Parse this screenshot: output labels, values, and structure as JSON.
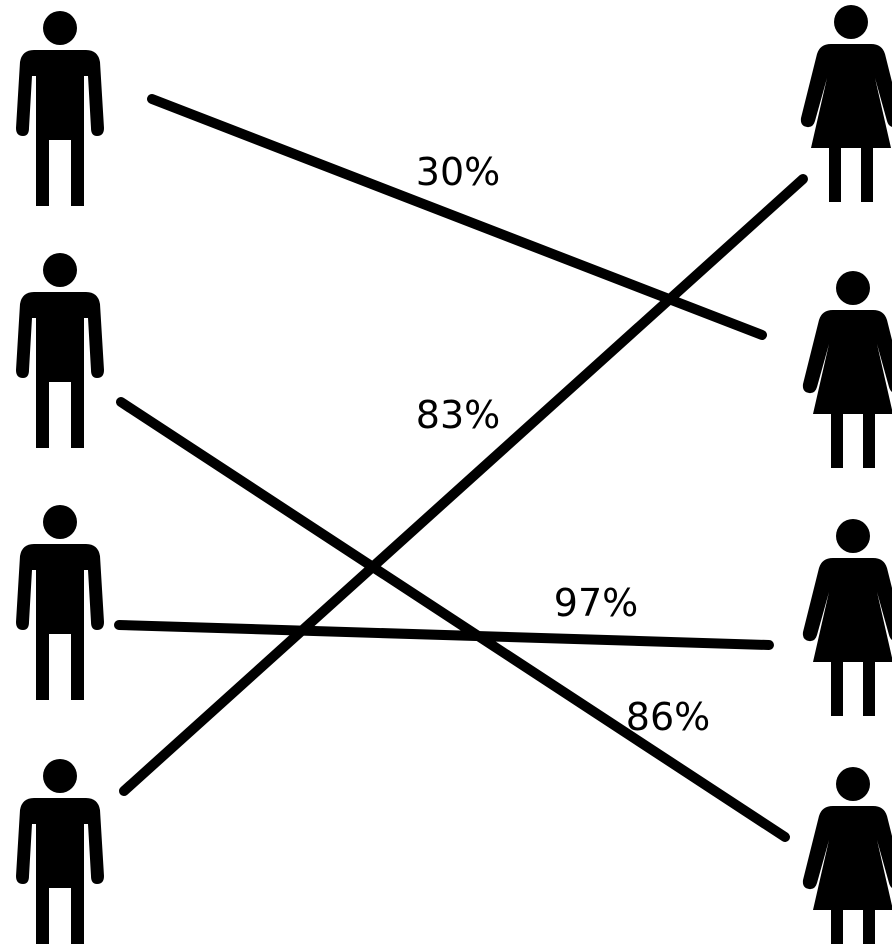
{
  "colors": {
    "ink": "#000000",
    "background": "#ffffff"
  },
  "figures": {
    "left_icon": "man-icon",
    "right_icon": "woman-icon",
    "left": [
      {
        "id": "man-1"
      },
      {
        "id": "man-2"
      },
      {
        "id": "man-3"
      },
      {
        "id": "man-4"
      }
    ],
    "right": [
      {
        "id": "woman-1"
      },
      {
        "id": "woman-2"
      },
      {
        "id": "woman-3"
      },
      {
        "id": "woman-4"
      }
    ]
  },
  "connections": [
    {
      "from": 1,
      "to": 2,
      "label": "30%"
    },
    {
      "from": 4,
      "to": 1,
      "label": "83%"
    },
    {
      "from": 3,
      "to": 3,
      "label": "97%"
    },
    {
      "from": 2,
      "to": 4,
      "label": "86%"
    }
  ]
}
